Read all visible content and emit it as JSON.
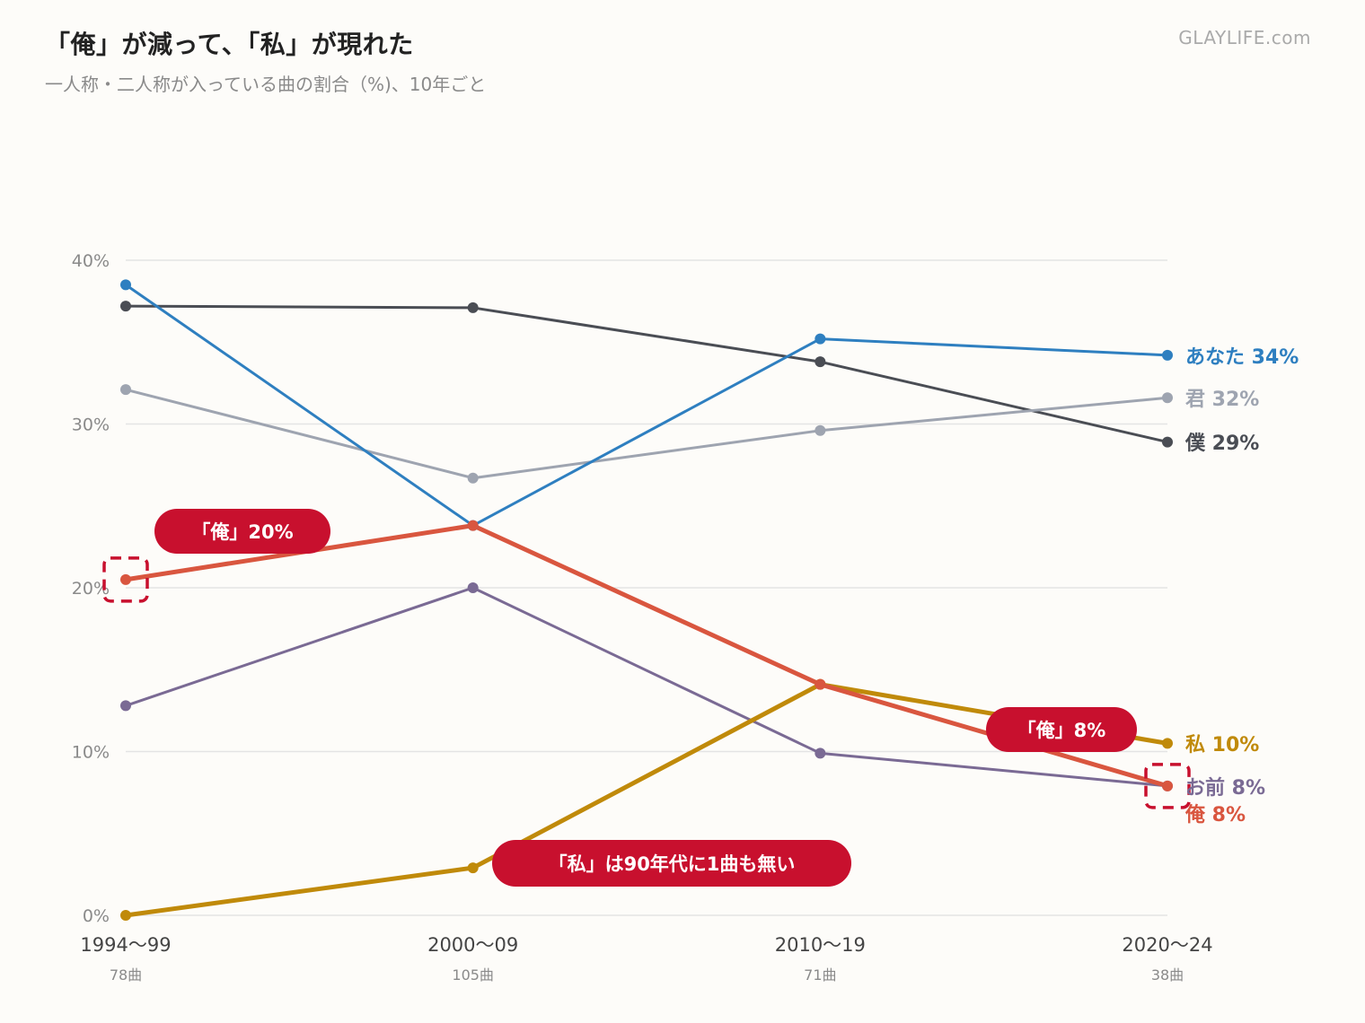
{
  "header": {
    "title": "「俺」が減って、「私」が現れた",
    "subtitle": "一人称・二人称が入っている曲の割合（%)、10年ごと",
    "brand": "GLAYLIFE.com"
  },
  "chart_data": {
    "type": "line",
    "title": "「俺」が減って、「私」が現れた",
    "subtitle": "一人称・二人称が入っている曲の割合（%)、10年ごと",
    "categories": [
      "1994〜99",
      "2000〜09",
      "2010〜19",
      "2020〜24"
    ],
    "category_counts": [
      "78曲",
      "105曲",
      "71曲",
      "38曲"
    ],
    "ylim": [
      0,
      40
    ],
    "yticks": [
      0,
      10,
      20,
      30,
      40
    ],
    "ytick_labels": [
      "0%",
      "10%",
      "20%",
      "30%",
      "40%"
    ],
    "grid": true,
    "series": [
      {
        "name": "僕",
        "end_label": "僕 29%",
        "color": "#4a4d54",
        "width": 3,
        "values": [
          37.2,
          37.1,
          33.8,
          28.9
        ]
      },
      {
        "name": "君",
        "end_label": "君 32%",
        "color": "#9ea4b0",
        "width": 3,
        "values": [
          32.1,
          26.7,
          29.6,
          31.6
        ]
      },
      {
        "name": "あなた",
        "end_label": "あなた 34%",
        "color": "#2e7fc0",
        "width": 3,
        "values": [
          38.5,
          23.8,
          35.2,
          34.2
        ]
      },
      {
        "name": "お前",
        "end_label": "お前 8%",
        "color": "#7a6a94",
        "width": 3,
        "values": [
          12.8,
          20.0,
          9.9,
          7.9
        ]
      },
      {
        "name": "私",
        "end_label": "私 10%",
        "color": "#c08a0a",
        "width": 5,
        "values": [
          0.0,
          2.9,
          14.1,
          10.5
        ]
      },
      {
        "name": "俺",
        "end_label": "俺 8%",
        "color": "#d9563f",
        "width": 5,
        "values": [
          20.5,
          23.8,
          14.1,
          7.9
        ]
      }
    ],
    "annotations": [
      {
        "text": "「俺」20%",
        "color": "#c8102e"
      },
      {
        "text": "「俺」8%",
        "color": "#c8102e"
      },
      {
        "text": "「私」は90年代に1曲も無い",
        "color": "#c8102e"
      }
    ]
  }
}
